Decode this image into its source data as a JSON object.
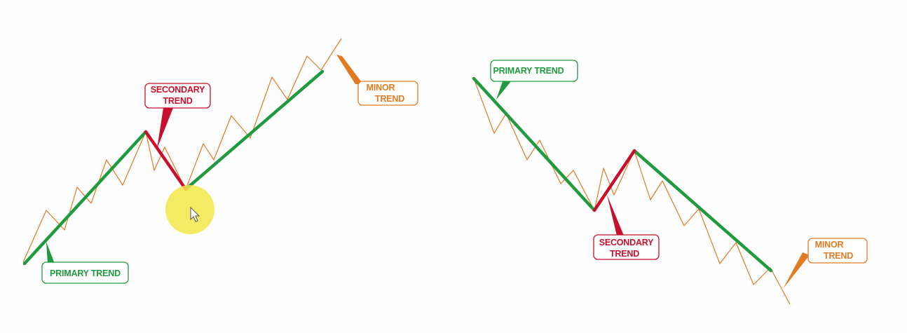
{
  "colors": {
    "primary": "#1f9a3e",
    "secondary": "#c8102e",
    "minor": "#e07b22",
    "background": "#fdfdfd",
    "cursor_highlight": "#f2e84a"
  },
  "diagrams": [
    {
      "direction": "uptrend",
      "labels": {
        "primary": [
          "PRIMARY TREND"
        ],
        "secondary": [
          "SECONDARY",
          "TREND"
        ],
        "minor": [
          "MINOR",
          "TREND"
        ]
      }
    },
    {
      "direction": "downtrend",
      "labels": {
        "primary": [
          "PRIMARY TREND"
        ],
        "secondary": [
          "SECONDARY",
          "TREND"
        ],
        "minor": [
          "MINOR",
          "TREND"
        ]
      }
    }
  ],
  "icons": {
    "cursor": "mouse-pointer-icon",
    "highlight": "cursor-highlight-circle"
  }
}
